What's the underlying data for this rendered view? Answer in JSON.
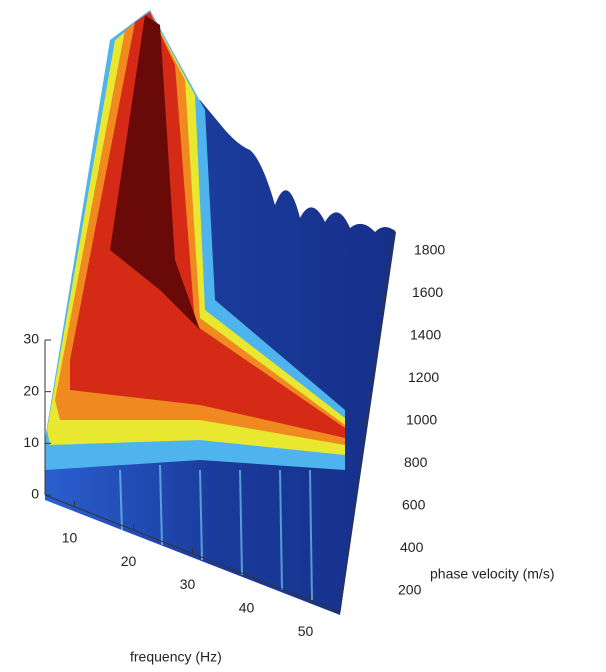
{
  "chart_data": {
    "type": "surface",
    "xlabel": "frequency (Hz)",
    "ylabel": "phase velocity (m/s)",
    "xlim": [
      5,
      55
    ],
    "xticks": [
      10,
      20,
      30,
      40,
      50
    ],
    "ylim": [
      100,
      1900
    ],
    "yticks": [
      200,
      400,
      600,
      800,
      1000,
      1200,
      1400,
      1600,
      1800
    ],
    "zlim": [
      0,
      30
    ],
    "zticks": [
      0,
      10,
      20,
      30
    ]
  }
}
